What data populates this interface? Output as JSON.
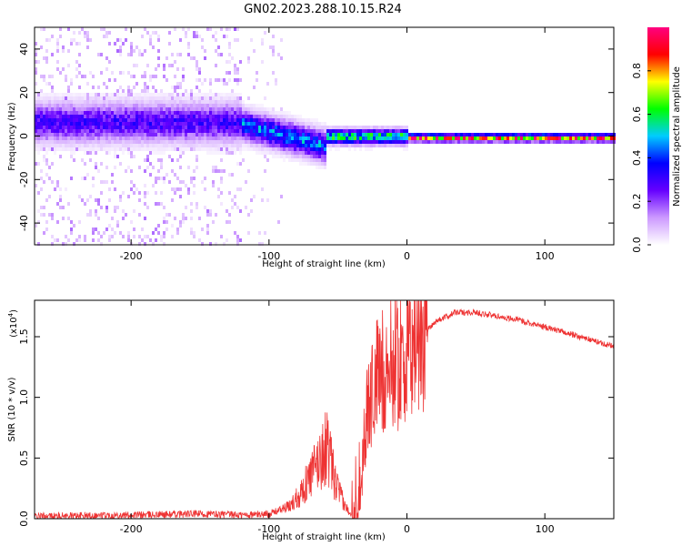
{
  "chart_data": {
    "title": "GN02.2023.288.10.15.R24",
    "panels": [
      {
        "type": "heatmap",
        "xlabel": "Height of straight line (km)",
        "ylabel": "Frequency (Hz)",
        "xlim": [
          -270,
          150
        ],
        "ylim": [
          -50,
          50
        ],
        "x_ticks": [
          -200,
          -100,
          0,
          100
        ],
        "x_tick_labels": [
          "-200",
          "-100",
          "0",
          "100"
        ],
        "y_ticks": [
          -40,
          -20,
          0,
          20,
          40
        ],
        "y_tick_labels": [
          "-40",
          "-20",
          "0",
          "20",
          "40"
        ],
        "colorbar": {
          "label": "Normalized spectral amplitude",
          "ticks": [
            0.0,
            0.2,
            0.4,
            0.6,
            0.8
          ],
          "tick_labels": [
            "0.0",
            "0.2",
            "0.4",
            "0.6",
            "0.8"
          ],
          "range": [
            0,
            1
          ],
          "colormap": [
            "#ffffff",
            "#cc99ff",
            "#6600ff",
            "#0000ff",
            "#00ccff",
            "#00ff00",
            "#ffff00",
            "#ff0000",
            "#ff0080"
          ]
        },
        "features": [
          {
            "x_range": [
              -270,
              -120
            ],
            "freq_center": 7,
            "band_halfwidth": 8,
            "scatter": "dense",
            "peak_amplitude": 0.3
          },
          {
            "x_range": [
              -120,
              -60
            ],
            "freq_center_start": 6,
            "freq_center_end": -4,
            "band_halfwidth": 6,
            "peak_amplitude": 0.45
          },
          {
            "x_range": [
              -60,
              0
            ],
            "freq_center": 0.5,
            "band_halfwidth": 3,
            "peak_amplitude": 0.6
          },
          {
            "x_range": [
              0,
              150
            ],
            "freq_center": 0,
            "band_halfwidth": 1.5,
            "peak_amplitude": 0.9
          }
        ]
      },
      {
        "type": "line",
        "xlabel": "Height of straight line (km)",
        "ylabel": "SNR (10 * v/v)",
        "scale_note_base": "(x10",
        "scale_note_exp": "4",
        "xlim": [
          -270,
          150
        ],
        "ylim": [
          0,
          1.8
        ],
        "x_ticks": [
          -200,
          -100,
          0,
          100
        ],
        "x_tick_labels": [
          "-200",
          "-100",
          "0",
          "100"
        ],
        "y_ticks": [
          0.0,
          0.5,
          1.0,
          1.5
        ],
        "y_tick_labels": [
          "0.0",
          "0.5",
          "1.0",
          "1.5"
        ],
        "color": "#ee3333",
        "envelope": [
          {
            "x": -270,
            "y": 0.02
          },
          {
            "x": -200,
            "y": 0.03
          },
          {
            "x": -150,
            "y": 0.04
          },
          {
            "x": -120,
            "y": 0.03
          },
          {
            "x": -100,
            "y": 0.04
          },
          {
            "x": -85,
            "y": 0.1
          },
          {
            "x": -75,
            "y": 0.25
          },
          {
            "x": -65,
            "y": 0.45
          },
          {
            "x": -58,
            "y": 0.6
          },
          {
            "x": -52,
            "y": 0.3
          },
          {
            "x": -45,
            "y": 0.1
          },
          {
            "x": -40,
            "y": 0.04
          },
          {
            "x": -34,
            "y": 0.35
          },
          {
            "x": -28,
            "y": 0.95
          },
          {
            "x": -22,
            "y": 1.15
          },
          {
            "x": -15,
            "y": 1.25
          },
          {
            "x": -8,
            "y": 1.3
          },
          {
            "x": 0,
            "y": 1.35
          },
          {
            "x": 10,
            "y": 1.5
          },
          {
            "x": 20,
            "y": 1.62
          },
          {
            "x": 35,
            "y": 1.7
          },
          {
            "x": 50,
            "y": 1.7
          },
          {
            "x": 80,
            "y": 1.64
          },
          {
            "x": 110,
            "y": 1.55
          },
          {
            "x": 150,
            "y": 1.42
          }
        ]
      }
    ]
  }
}
